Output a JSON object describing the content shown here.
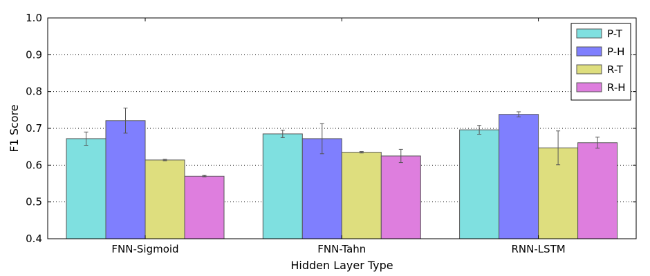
{
  "chart_data": {
    "type": "bar",
    "xlabel": "Hidden Layer Type",
    "ylabel": "F1 Score",
    "ylim": [
      0.4,
      1.0
    ],
    "yticks": [
      "0.4",
      "0.5",
      "0.6",
      "0.7",
      "0.8",
      "0.9",
      "1.0"
    ],
    "grid": "horizontal dotted",
    "legend_position": "top-right",
    "categories": [
      "FNN-Sigmoid",
      "FNN-Tahn",
      "RNN-LSTM"
    ],
    "series": [
      {
        "name": "P-T",
        "color": "#7fe0e0",
        "values": [
          0.672,
          0.685,
          0.696
        ],
        "errors": [
          0.018,
          0.01,
          0.012
        ]
      },
      {
        "name": "P-H",
        "color": "#7f7ffe",
        "values": [
          0.721,
          0.672,
          0.738
        ],
        "errors": [
          0.034,
          0.041,
          0.007
        ]
      },
      {
        "name": "R-T",
        "color": "#dede7e",
        "values": [
          0.614,
          0.635,
          0.647
        ],
        "errors": [
          0.002,
          0.002,
          0.046
        ]
      },
      {
        "name": "R-H",
        "color": "#de7ede",
        "values": [
          0.57,
          0.625,
          0.661
        ],
        "errors": [
          0.002,
          0.018,
          0.015
        ]
      }
    ]
  }
}
